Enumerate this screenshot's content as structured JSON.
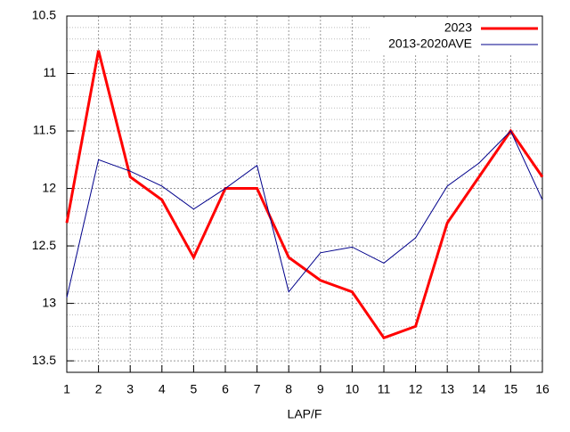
{
  "chart_data": {
    "type": "line",
    "x": [
      1,
      2,
      3,
      4,
      5,
      6,
      7,
      8,
      9,
      10,
      11,
      12,
      13,
      14,
      15,
      16
    ],
    "xlim": [
      1,
      16
    ],
    "xticks": [
      1,
      2,
      3,
      4,
      5,
      6,
      7,
      8,
      9,
      10,
      11,
      12,
      13,
      14,
      15,
      16
    ],
    "ylim": [
      10.5,
      13.6
    ],
    "y_reversed": true,
    "yticks": [
      10.5,
      11,
      11.5,
      12,
      12.5,
      13,
      13.5
    ],
    "xlabel": "LAP/F",
    "grid": true,
    "legend": "top-right",
    "series": [
      {
        "name": "2023",
        "color": "#ff0000",
        "width": 3,
        "values": [
          12.3,
          10.8,
          11.9,
          12.1,
          12.6,
          12.0,
          12.0,
          12.6,
          12.8,
          12.9,
          13.3,
          13.2,
          12.3,
          11.9,
          11.5,
          11.9
        ]
      },
      {
        "name": "2013-2020AVE",
        "color": "#00008b",
        "width": 1,
        "values": [
          12.95,
          11.75,
          11.85,
          11.98,
          12.18,
          12.0,
          11.8,
          12.9,
          12.56,
          12.51,
          12.65,
          12.43,
          11.98,
          11.78,
          11.5,
          12.1
        ]
      }
    ]
  }
}
